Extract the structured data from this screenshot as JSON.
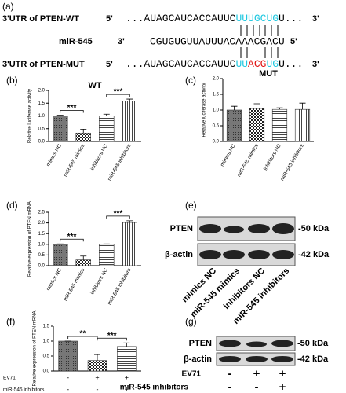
{
  "figure": {
    "a": {
      "label": "(a)",
      "wt": {
        "name": "3'UTR of PTEN-WT",
        "end5": "5'",
        "seq": "...AUAGCAUCACCAUUC",
        "site": "UUUGCUG",
        "tail": "U...",
        "end3": "3'"
      },
      "mir": {
        "name": "miR-545",
        "end3": "3'",
        "seq": "CGUGUGUUAUUUACAAACGACU",
        "end5": "5'"
      },
      "mut": {
        "name": "3'UTR of PTEN-MUT",
        "end5": "5'",
        "seq": "...AUAGCAUCACCAUUC",
        "site1": "UU",
        "mutated": "ACG",
        "site2": "UG",
        "tail": "U...",
        "end3": "3'"
      }
    },
    "e": {
      "label": "(e)",
      "protein": "PTEN",
      "control": "β-actin",
      "size1": "-50 kDa",
      "size2": "-42 kDa",
      "lanes": [
        "mimics NC",
        "miR-545 mimics",
        "inhibitors NC",
        "miR-545 inhibitors"
      ]
    },
    "g": {
      "label": "(g)",
      "protein": "PTEN",
      "control": "β-actin",
      "size1": "-50 kDa",
      "size2": "-42 kDa",
      "conditions": [
        {
          "name": "EV71",
          "signs": [
            "-",
            "+",
            "+"
          ]
        },
        {
          "name": "miR-545 inhibitors",
          "signs": [
            "-",
            "-",
            "+"
          ]
        }
      ]
    }
  },
  "chart_data": [
    {
      "type": "bar",
      "label": "(b)",
      "title": "WT",
      "ylabel": "Relative luciferase activity",
      "categories": [
        "mimics NC",
        "miR-545 mimics",
        "inhibitors NC",
        "miR-545 inhibitors"
      ],
      "values": [
        1.0,
        0.33,
        1.0,
        1.58
      ],
      "errors": [
        0.03,
        0.15,
        0.07,
        0.08
      ],
      "ylim": [
        0,
        2
      ],
      "yticks": [
        {
          "value": 0,
          "label": "0.0"
        },
        {
          "value": 0.5,
          "label": "0.5"
        },
        {
          "value": 1,
          "label": "1.0"
        },
        {
          "value": 1.5,
          "label": "1.5"
        },
        {
          "value": 2,
          "label": "2.0"
        }
      ],
      "annotations": [
        {
          "text": "***",
          "between": [
            0,
            1
          ]
        },
        {
          "text": "***",
          "between": [
            2,
            3
          ]
        }
      ]
    },
    {
      "type": "bar",
      "label": "(c)",
      "title": "MUT",
      "ylabel": "Relative luciferase activity",
      "categories": [
        "mimics NC",
        "miR-545 mimics",
        "inhibitors NC",
        "miR-545 inhibitors"
      ],
      "values": [
        1.0,
        1.05,
        1.02,
        1.02
      ],
      "errors": [
        0.12,
        0.15,
        0.05,
        0.2
      ],
      "ylim": [
        0,
        2
      ],
      "yticks": [
        {
          "value": 0,
          "label": "0.0"
        },
        {
          "value": 0.5,
          "label": "0.5"
        },
        {
          "value": 1,
          "label": "1.0"
        },
        {
          "value": 1.5,
          "label": "1.5"
        },
        {
          "value": 2,
          "label": "2.0"
        }
      ]
    },
    {
      "type": "bar",
      "label": "(d)",
      "ylabel": "Relative expression of PTEN mRNA",
      "categories": [
        "mimics NC",
        "miR-545 mimics",
        "inhibitors NC",
        "miR-545 inhibitors"
      ],
      "values": [
        1.0,
        0.27,
        1.0,
        2.02
      ],
      "errors": [
        0.02,
        0.18,
        0.02,
        0.08
      ],
      "ylim": [
        0,
        2.5
      ],
      "yticks": [
        {
          "value": 0,
          "label": "0.0"
        },
        {
          "value": 0.5,
          "label": "0.5"
        },
        {
          "value": 1,
          "label": "1.0"
        },
        {
          "value": 1.5,
          "label": "1.5"
        },
        {
          "value": 2,
          "label": "2.0"
        },
        {
          "value": 2.5,
          "label": "2.5"
        }
      ],
      "annotations": [
        {
          "text": "***",
          "between": [
            0,
            1
          ]
        },
        {
          "text": "***",
          "between": [
            2,
            3
          ]
        }
      ]
    },
    {
      "type": "bar",
      "label": "(f)",
      "ylabel": "Relative expression of PTEN mRNA",
      "values": [
        1.0,
        0.35,
        0.82
      ],
      "errors": [
        0,
        0.2,
        0.12
      ],
      "ylim": [
        0,
        1.5
      ],
      "yticks": [
        {
          "value": 0,
          "label": "0.0"
        },
        {
          "value": 0.5,
          "label": "0.5"
        },
        {
          "value": 1,
          "label": "1.0"
        },
        {
          "value": 1.5,
          "label": "1.5"
        }
      ],
      "annotations": [
        {
          "text": "**",
          "between": [
            0,
            1
          ]
        },
        {
          "text": "***",
          "between": [
            1,
            2
          ]
        }
      ],
      "conditions": [
        {
          "name": "EV71",
          "signs": [
            "-",
            "+",
            "+"
          ]
        },
        {
          "name": "miR-545 inhibitors",
          "signs": [
            "-",
            "-",
            "+"
          ]
        }
      ]
    }
  ]
}
